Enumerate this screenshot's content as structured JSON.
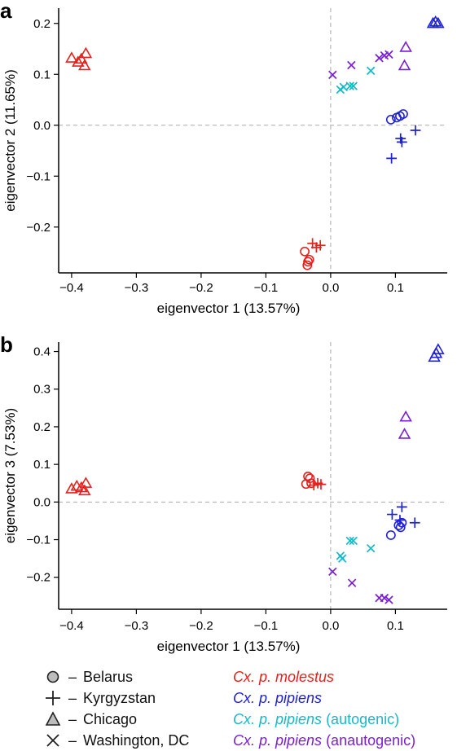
{
  "chart_data": [
    {
      "panel_label": "a",
      "type": "scatter",
      "xlabel": "eigenvector 1 (13.57%)",
      "ylabel": "eigenvector 2 (11.65%)",
      "xlim": [
        -0.42,
        0.18
      ],
      "ylim": [
        -0.29,
        0.23
      ],
      "xticks": [
        -0.4,
        -0.3,
        -0.2,
        -0.1,
        0.0,
        0.1
      ],
      "xtick_labels": [
        "−0.4",
        "−0.3",
        "−0.2",
        "−0.1",
        "0.0",
        "0.1"
      ],
      "yticks": [
        -0.2,
        -0.1,
        0.0,
        0.1,
        0.2
      ],
      "ytick_labels": [
        "−0.2",
        "−0.1",
        "0.0",
        "0.1",
        "0.2"
      ],
      "reference_lines": {
        "x": 0,
        "y": 0
      },
      "series": [
        {
          "name": "Cx. p. molestus",
          "color": "#e8201c",
          "points": [
            {
              "x": -0.4,
              "y": 0.132,
              "marker": "triangle"
            },
            {
              "x": -0.39,
              "y": 0.124,
              "marker": "triangle"
            },
            {
              "x": -0.385,
              "y": 0.13,
              "marker": "triangle"
            },
            {
              "x": -0.38,
              "y": 0.117,
              "marker": "triangle"
            },
            {
              "x": -0.378,
              "y": 0.141,
              "marker": "triangle"
            },
            {
              "x": -0.04,
              "y": -0.248,
              "marker": "circle"
            },
            {
              "x": -0.035,
              "y": -0.268,
              "marker": "circle"
            },
            {
              "x": -0.033,
              "y": -0.264,
              "marker": "circle"
            },
            {
              "x": -0.036,
              "y": -0.275,
              "marker": "circle"
            },
            {
              "x": -0.028,
              "y": -0.232,
              "marker": "plus"
            },
            {
              "x": -0.022,
              "y": -0.24,
              "marker": "plus"
            },
            {
              "x": -0.016,
              "y": -0.236,
              "marker": "plus"
            }
          ]
        },
        {
          "name": "Cx. p. pipiens",
          "color": "#1f22d6",
          "points": [
            {
              "x": 0.093,
              "y": 0.011,
              "marker": "circle"
            },
            {
              "x": 0.102,
              "y": 0.015,
              "marker": "circle"
            },
            {
              "x": 0.107,
              "y": 0.018,
              "marker": "circle"
            },
            {
              "x": 0.112,
              "y": 0.022,
              "marker": "circle"
            },
            {
              "x": 0.108,
              "y": -0.026,
              "marker": "plus"
            },
            {
              "x": 0.11,
              "y": -0.033,
              "marker": "plus"
            },
            {
              "x": 0.131,
              "y": -0.01,
              "marker": "plus"
            },
            {
              "x": 0.094,
              "y": -0.065,
              "marker": "plus"
            },
            {
              "x": 0.158,
              "y": 0.2,
              "marker": "triangle"
            },
            {
              "x": 0.162,
              "y": 0.203,
              "marker": "triangle"
            },
            {
              "x": 0.166,
              "y": 0.2,
              "marker": "triangle"
            }
          ]
        },
        {
          "name": "Cx. p. pipiens (autogenic)",
          "color": "#19b8c6",
          "points": [
            {
              "x": 0.015,
              "y": 0.07,
              "marker": "x"
            },
            {
              "x": 0.02,
              "y": 0.075,
              "marker": "x"
            },
            {
              "x": 0.03,
              "y": 0.077,
              "marker": "x"
            },
            {
              "x": 0.035,
              "y": 0.077,
              "marker": "x"
            },
            {
              "x": 0.062,
              "y": 0.107,
              "marker": "x"
            }
          ]
        },
        {
          "name": "Cx. p. pipiens (anautogenic)",
          "color": "#7a1fd2",
          "points": [
            {
              "x": 0.003,
              "y": 0.099,
              "marker": "x"
            },
            {
              "x": 0.032,
              "y": 0.118,
              "marker": "x"
            },
            {
              "x": 0.075,
              "y": 0.132,
              "marker": "x"
            },
            {
              "x": 0.083,
              "y": 0.137,
              "marker": "x"
            },
            {
              "x": 0.09,
              "y": 0.139,
              "marker": "x"
            },
            {
              "x": 0.116,
              "y": 0.153,
              "marker": "triangle"
            },
            {
              "x": 0.114,
              "y": 0.117,
              "marker": "triangle"
            }
          ]
        }
      ]
    },
    {
      "panel_label": "b",
      "type": "scatter",
      "xlabel": "eigenvector 1 (13.57%)",
      "ylabel": "eigenvector 3 (7.53%)",
      "xlim": [
        -0.42,
        0.18
      ],
      "ylim": [
        -0.285,
        0.425
      ],
      "xticks": [
        -0.4,
        -0.3,
        -0.2,
        -0.1,
        0.0,
        0.1
      ],
      "xtick_labels": [
        "−0.4",
        "−0.3",
        "−0.2",
        "−0.1",
        "0.0",
        "0.1"
      ],
      "yticks": [
        -0.2,
        -0.1,
        0.0,
        0.1,
        0.2,
        0.3,
        0.4
      ],
      "ytick_labels": [
        "−0.2",
        "−0.1",
        "0.0",
        "0.1",
        "0.2",
        "0.3",
        "0.4"
      ],
      "reference_lines": {
        "x": 0,
        "y": 0
      },
      "series": [
        {
          "name": "Cx. p. molestus",
          "color": "#e8201c",
          "points": [
            {
              "x": -0.4,
              "y": 0.035,
              "marker": "triangle"
            },
            {
              "x": -0.392,
              "y": 0.042,
              "marker": "triangle"
            },
            {
              "x": -0.385,
              "y": 0.038,
              "marker": "triangle"
            },
            {
              "x": -0.38,
              "y": 0.03,
              "marker": "triangle"
            },
            {
              "x": -0.378,
              "y": 0.05,
              "marker": "triangle"
            },
            {
              "x": -0.038,
              "y": 0.048,
              "marker": "circle"
            },
            {
              "x": -0.035,
              "y": 0.068,
              "marker": "circle"
            },
            {
              "x": -0.032,
              "y": 0.063,
              "marker": "circle"
            },
            {
              "x": -0.03,
              "y": 0.05,
              "marker": "circle"
            },
            {
              "x": -0.026,
              "y": 0.045,
              "marker": "plus"
            },
            {
              "x": -0.02,
              "y": 0.05,
              "marker": "plus"
            },
            {
              "x": -0.015,
              "y": 0.047,
              "marker": "plus"
            }
          ]
        },
        {
          "name": "Cx. p. pipiens",
          "color": "#1f22d6",
          "points": [
            {
              "x": 0.093,
              "y": -0.088,
              "marker": "circle"
            },
            {
              "x": 0.105,
              "y": -0.062,
              "marker": "circle"
            },
            {
              "x": 0.108,
              "y": -0.067,
              "marker": "circle"
            },
            {
              "x": 0.11,
              "y": -0.055,
              "marker": "circle"
            },
            {
              "x": 0.095,
              "y": -0.033,
              "marker": "plus"
            },
            {
              "x": 0.11,
              "y": -0.013,
              "marker": "plus"
            },
            {
              "x": 0.107,
              "y": -0.048,
              "marker": "plus"
            },
            {
              "x": 0.13,
              "y": -0.055,
              "marker": "plus"
            },
            {
              "x": 0.16,
              "y": 0.385,
              "marker": "triangle"
            },
            {
              "x": 0.163,
              "y": 0.395,
              "marker": "triangle"
            },
            {
              "x": 0.166,
              "y": 0.405,
              "marker": "triangle"
            }
          ]
        },
        {
          "name": "Cx. p. pipiens (autogenic)",
          "color": "#19b8c6",
          "points": [
            {
              "x": 0.015,
              "y": -0.143,
              "marker": "x"
            },
            {
              "x": 0.018,
              "y": -0.15,
              "marker": "x"
            },
            {
              "x": 0.03,
              "y": -0.103,
              "marker": "x"
            },
            {
              "x": 0.035,
              "y": -0.103,
              "marker": "x"
            },
            {
              "x": 0.062,
              "y": -0.123,
              "marker": "x"
            }
          ]
        },
        {
          "name": "Cx. p. pipiens (anautogenic)",
          "color": "#7a1fd2",
          "points": [
            {
              "x": 0.003,
              "y": -0.185,
              "marker": "x"
            },
            {
              "x": 0.033,
              "y": -0.215,
              "marker": "x"
            },
            {
              "x": 0.075,
              "y": -0.255,
              "marker": "x"
            },
            {
              "x": 0.083,
              "y": -0.255,
              "marker": "x"
            },
            {
              "x": 0.09,
              "y": -0.26,
              "marker": "x"
            },
            {
              "x": 0.116,
              "y": 0.226,
              "marker": "triangle"
            },
            {
              "x": 0.114,
              "y": 0.18,
              "marker": "triangle"
            }
          ]
        }
      ]
    }
  ],
  "legend": {
    "locations": [
      {
        "marker": "circle",
        "label": "Belarus"
      },
      {
        "marker": "plus",
        "label": "Kyrgyzstan"
      },
      {
        "marker": "triangle",
        "label": "Chicago"
      },
      {
        "marker": "x",
        "label": "Washington, DC"
      }
    ],
    "species": [
      {
        "name": "Cx. p. molestus",
        "suffix": "",
        "color": "#e8201c"
      },
      {
        "name": "Cx. p. pipiens",
        "suffix": "",
        "color": "#1f22d6"
      },
      {
        "name": "Cx. p. pipiens",
        "suffix": " (autogenic)",
        "color": "#19b8c6"
      },
      {
        "name": "Cx. p. pipiens",
        "suffix": " (anautogenic)",
        "color": "#7a1fd2"
      }
    ]
  }
}
